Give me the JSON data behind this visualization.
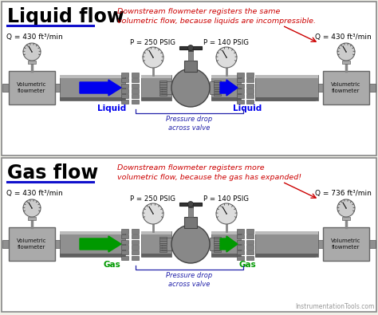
{
  "bg_color": "#f0f0e8",
  "panel_bg": "#ffffff",
  "panel_border": "#888888",
  "title1": "Liquid flow",
  "title2": "Gas flow",
  "title_color": "#000000",
  "underline_color": "#1111cc",
  "note1": "Downstream flowmeter registers the same\nvolumetric flow, because liquids are incompressible.",
  "note2": "Downstream flowmeter registers more\nvolumetric flow, because the gas has expanded!",
  "note_color": "#cc0000",
  "arrow_color_liquid": "#0000ee",
  "arrow_color_gas": "#009900",
  "pipe_fill": "#909090",
  "pipe_top": "#bbbbbb",
  "pipe_bot": "#606060",
  "pipe_edge": "#555555",
  "flowmeter_fill": "#aaaaaa",
  "flowmeter_edge": "#666666",
  "gauge_fill": "#cccccc",
  "gauge_edge": "#666666",
  "gauge_face": "#dddddd",
  "flange_fill": "#808080",
  "flange_edge": "#444444",
  "valve_body": "#888888",
  "valve_edge": "#444444",
  "stem_fill": "#777777",
  "wheel_fill": "#444444",
  "label_liquid": "Liquid",
  "label_gas": "Gas",
  "label_color_liquid": "#0000ee",
  "label_color_gas": "#009900",
  "pressure_drop_label": "Pressure drop\nacross valve",
  "pressure_drop_color": "#2222aa",
  "q1_left": "Q = 430 ft³/min",
  "q1_right": "Q = 430 ft³/min",
  "q2_left": "Q = 430 ft³/min",
  "q2_right": "Q = 736 ft³/min",
  "p1_left": "P = 250 PSIG",
  "p1_right": "P = 140 PSIG",
  "p2_left": "P = 250 PSIG",
  "p2_right": "P = 140 PSIG",
  "watermark": "InstrumentationTools.com",
  "watermark_color": "#999999"
}
